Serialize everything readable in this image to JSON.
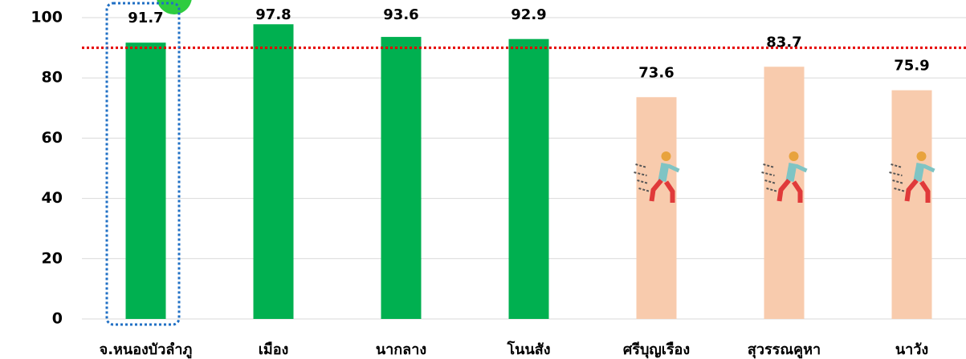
{
  "chart_data": {
    "type": "bar",
    "categories": [
      "จ.หนองบัวลำภู",
      "เมือง",
      "นากลาง",
      "โนนสัง",
      "ศรีบุญเรือง",
      "สุวรรณคูหา",
      "นาวัง"
    ],
    "values": [
      91.7,
      97.8,
      93.6,
      92.9,
      73.6,
      83.7,
      75.9
    ],
    "colors": [
      "#00b050",
      "#00b050",
      "#00b050",
      "#00b050",
      "#f8cbad",
      "#f8cbad",
      "#f8cbad"
    ],
    "target": 90,
    "target_color": "#e60000",
    "ylim": [
      0,
      100
    ],
    "yticks": [
      0,
      20,
      40,
      60,
      80,
      100
    ],
    "grid": true
  }
}
